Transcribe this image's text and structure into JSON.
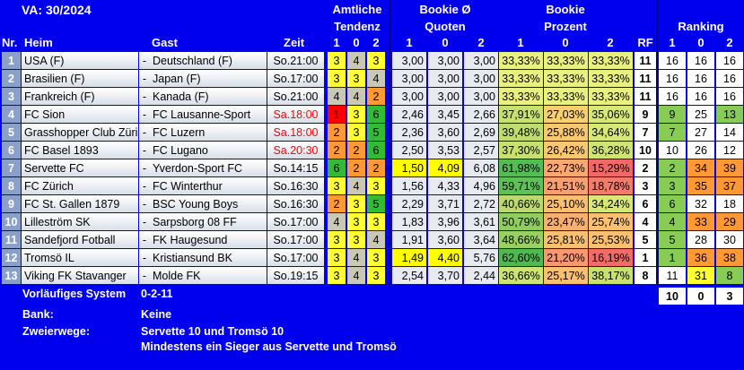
{
  "title": "VA: 30/2024",
  "headers": {
    "amtliche": "Amtliche",
    "tendenz": "Tendenz",
    "bookie_o": "Bookie Ø",
    "quoten": "Quoten",
    "bookie": "Bookie",
    "prozent": "Prozent",
    "ranking": "Ranking",
    "nr": "Nr.",
    "heim": "Heim",
    "gast": "Gast",
    "zeit": "Zeit",
    "one": "1",
    "zero": "0",
    "two": "2",
    "rf": "RF"
  },
  "colors": {
    "background": "#0000ee",
    "yellow": "#ffff00",
    "green": "#33bb33",
    "orange": "#ff9933",
    "red": "#ff0000",
    "gray": "#c8c8b4"
  },
  "rows": [
    {
      "nr": "1",
      "heim": "USA (F)",
      "gast": "Deutschland (F)",
      "zeit": "So.21:00",
      "zeit_red": false,
      "t1": "3",
      "t0": "4",
      "t2": "3",
      "t1c": "#ffff33",
      "t0c": "#c8c8b4",
      "t2c": "#ffff33",
      "q1": "3,00",
      "q0": "3,00",
      "q2": "3,00",
      "qh": [
        false,
        false,
        false
      ],
      "p1": "33,33%",
      "p0": "33,33%",
      "p2": "33,33%",
      "p1c": "#e8f080",
      "p0c": "#e8f080",
      "p2c": "#e8f080",
      "rf": "11",
      "r1": "16",
      "r0": "16",
      "r2": "16",
      "r1c": "#ffffff",
      "r0c": "#ffffff",
      "r2c": "#ffffff"
    },
    {
      "nr": "2",
      "heim": "Brasilien (F)",
      "gast": "Japan (F)",
      "zeit": "So.17:00",
      "zeit_red": false,
      "t1": "3",
      "t0": "3",
      "t2": "4",
      "t1c": "#ffff33",
      "t0c": "#ffff33",
      "t2c": "#c8c8b4",
      "q1": "3,00",
      "q0": "3,00",
      "q2": "3,00",
      "qh": [
        false,
        false,
        false
      ],
      "p1": "33,33%",
      "p0": "33,33%",
      "p2": "33,33%",
      "p1c": "#e8f080",
      "p0c": "#e8f080",
      "p2c": "#e8f080",
      "rf": "11",
      "r1": "16",
      "r0": "16",
      "r2": "16",
      "r1c": "#ffffff",
      "r0c": "#ffffff",
      "r2c": "#ffffff"
    },
    {
      "nr": "3",
      "heim": "Frankreich (F)",
      "gast": "Kanada (F)",
      "zeit": "So.21:00",
      "zeit_red": false,
      "t1": "4",
      "t0": "4",
      "t2": "2",
      "t1c": "#c8c8b4",
      "t0c": "#c8c8b4",
      "t2c": "#ff9933",
      "q1": "3,00",
      "q0": "3,00",
      "q2": "3,00",
      "qh": [
        false,
        false,
        false
      ],
      "p1": "33,33%",
      "p0": "33,33%",
      "p2": "33,33%",
      "p1c": "#e8f080",
      "p0c": "#e8f080",
      "p2c": "#e8f080",
      "rf": "11",
      "r1": "16",
      "r0": "16",
      "r2": "16",
      "r1c": "#ffffff",
      "r0c": "#ffffff",
      "r2c": "#ffffff"
    },
    {
      "nr": "4",
      "heim": "FC Sion",
      "gast": "FC Lausanne-Sport",
      "zeit": "Sa.18:00",
      "zeit_red": true,
      "t1": "1",
      "t0": "3",
      "t2": "6",
      "t1c": "#ff0000",
      "t0c": "#ffff33",
      "t2c": "#33bb33",
      "q1": "2,46",
      "q0": "3,45",
      "q2": "2,66",
      "qh": [
        false,
        false,
        false
      ],
      "p1": "37,91%",
      "p0": "27,03%",
      "p2": "35,06%",
      "p1c": "#c8e070",
      "p0c": "#f8d070",
      "p2c": "#d8e878",
      "rf": "9",
      "r1": "9",
      "r0": "25",
      "r2": "13",
      "r1c": "#88cc55",
      "r0c": "#ffffff",
      "r2c": "#88cc55"
    },
    {
      "nr": "5",
      "heim": "Grasshopper Club Züri",
      "gast": "FC Luzern",
      "zeit": "Sa.18:00",
      "zeit_red": true,
      "t1": "2",
      "t0": "3",
      "t2": "5",
      "t1c": "#ff9933",
      "t0c": "#ffff33",
      "t2c": "#33bb33",
      "q1": "2,36",
      "q0": "3,60",
      "q2": "2,69",
      "qh": [
        false,
        false,
        false
      ],
      "p1": "39,48%",
      "p0": "25,88%",
      "p2": "34,64%",
      "p1c": "#c0dc70",
      "p0c": "#f8c870",
      "p2c": "#d8e878",
      "rf": "7",
      "r1": "7",
      "r0": "27",
      "r2": "14",
      "r1c": "#88cc55",
      "r0c": "#ffffff",
      "r2c": "#ffffff"
    },
    {
      "nr": "6",
      "heim": "FC Basel 1893",
      "gast": "FC Lugano",
      "zeit": "Sa.20:30",
      "zeit_red": true,
      "t1": "2",
      "t0": "2",
      "t2": "6",
      "t1c": "#ff9933",
      "t0c": "#ff9933",
      "t2c": "#33bb33",
      "q1": "2,50",
      "q0": "3,53",
      "q2": "2,57",
      "qh": [
        false,
        false,
        false
      ],
      "p1": "37,30%",
      "p0": "26,42%",
      "p2": "36,28%",
      "p1c": "#c8e070",
      "p0c": "#f8c870",
      "p2c": "#d0e474",
      "rf": "10",
      "r1": "10",
      "r0": "26",
      "r2": "12",
      "r1c": "#ffffff",
      "r0c": "#ffffff",
      "r2c": "#ffffff"
    },
    {
      "nr": "7",
      "heim": "Servette FC",
      "gast": "Yverdon-Sport FC",
      "zeit": "So.14:15",
      "zeit_red": false,
      "t1": "6",
      "t0": "2",
      "t2": "2",
      "t1c": "#33bb33",
      "t0c": "#ff9933",
      "t2c": "#ff9933",
      "q1": "1,50",
      "q0": "4,09",
      "q2": "6,08",
      "qh": [
        true,
        true,
        false
      ],
      "p1": "61,98%",
      "p0": "22,73%",
      "p2": "15,29%",
      "p1c": "#55bb55",
      "p0c": "#f8a870",
      "p2c": "#f06868",
      "rf": "2",
      "r1": "2",
      "r0": "34",
      "r2": "39",
      "r1c": "#88cc55",
      "r0c": "#ff9933",
      "r2c": "#ff9933"
    },
    {
      "nr": "8",
      "heim": "FC Zürich",
      "gast": "FC Winterthur",
      "zeit": "So.16:30",
      "zeit_red": false,
      "t1": "3",
      "t0": "4",
      "t2": "3",
      "t1c": "#ffff33",
      "t0c": "#c8c8b4",
      "t2c": "#ffff33",
      "q1": "1,56",
      "q0": "4,33",
      "q2": "4,96",
      "qh": [
        false,
        false,
        false
      ],
      "p1": "59,71%",
      "p0": "21,51%",
      "p2": "18,78%",
      "p1c": "#60c058",
      "p0c": "#f8a070",
      "p2c": "#f07c6c",
      "rf": "3",
      "r1": "3",
      "r0": "35",
      "r2": "37",
      "r1c": "#88cc55",
      "r0c": "#ff9933",
      "r2c": "#ff9933"
    },
    {
      "nr": "9",
      "heim": "FC St. Gallen 1879",
      "gast": "BSC Young Boys",
      "zeit": "So.16:30",
      "zeit_red": false,
      "t1": "2",
      "t0": "3",
      "t2": "5",
      "t1c": "#ff9933",
      "t0c": "#ffff33",
      "t2c": "#33bb33",
      "q1": "2,29",
      "q0": "3,71",
      "q2": "2,72",
      "qh": [
        false,
        false,
        false
      ],
      "p1": "40,66%",
      "p0": "25,10%",
      "p2": "34,24%",
      "p1c": "#bcd870",
      "p0c": "#f8c070",
      "p2c": "#d8e878",
      "rf": "6",
      "r1": "6",
      "r0": "32",
      "r2": "18",
      "r1c": "#88cc55",
      "r0c": "#ffffff",
      "r2c": "#ffffff"
    },
    {
      "nr": "10",
      "heim": "Lilleström SK",
      "gast": "Sarpsborg 08 FF",
      "zeit": "So.17:00",
      "zeit_red": false,
      "t1": "4",
      "t0": "3",
      "t2": "3",
      "t1c": "#c8c8b4",
      "t0c": "#ffff33",
      "t2c": "#ffff33",
      "q1": "1,83",
      "q0": "3,96",
      "q2": "3,61",
      "qh": [
        false,
        false,
        false
      ],
      "p1": "50,79%",
      "p0": "23,47%",
      "p2": "25,74%",
      "p1c": "#90cc60",
      "p0c": "#f8b070",
      "p2c": "#f8c070",
      "rf": "4",
      "r1": "4",
      "r0": "33",
      "r2": "29",
      "r1c": "#88cc55",
      "r0c": "#ff9933",
      "r2c": "#ff9933"
    },
    {
      "nr": "11",
      "heim": "Sandefjord Fotball",
      "gast": "FK Haugesund",
      "zeit": "So.17:00",
      "zeit_red": false,
      "t1": "3",
      "t0": "3",
      "t2": "4",
      "t1c": "#ffff33",
      "t0c": "#ffff33",
      "t2c": "#c8c8b4",
      "q1": "1,91",
      "q0": "3,60",
      "q2": "3,64",
      "qh": [
        false,
        false,
        false
      ],
      "p1": "48,66%",
      "p0": "25,81%",
      "p2": "25,53%",
      "p1c": "#98d064",
      "p0c": "#f8c070",
      "p2c": "#f8c070",
      "rf": "5",
      "r1": "5",
      "r0": "28",
      "r2": "30",
      "r1c": "#88cc55",
      "r0c": "#ffffff",
      "r2c": "#ffffff"
    },
    {
      "nr": "12",
      "heim": "Tromsö IL",
      "gast": "Kristiansund BK",
      "zeit": "So.17:00",
      "zeit_red": false,
      "t1": "3",
      "t0": "4",
      "t2": "3",
      "t1c": "#ffff33",
      "t0c": "#c8c8b4",
      "t2c": "#ffff33",
      "q1": "1,49",
      "q0": "4,40",
      "q2": "5,76",
      "qh": [
        true,
        true,
        false
      ],
      "p1": "62,60%",
      "p0": "21,20%",
      "p2": "16,19%",
      "p1c": "#50b850",
      "p0c": "#f89870",
      "p2c": "#f06c68",
      "rf": "1",
      "r1": "1",
      "r0": "36",
      "r2": "38",
      "r1c": "#88cc55",
      "r0c": "#ff9933",
      "r2c": "#ff9933"
    },
    {
      "nr": "13",
      "heim": "Viking FK Stavanger",
      "gast": "Molde FK",
      "zeit": "So.19:15",
      "zeit_red": false,
      "t1": "3",
      "t0": "4",
      "t2": "3",
      "t1c": "#ffff33",
      "t0c": "#c8c8b4",
      "t2c": "#ffff33",
      "q1": "2,54",
      "q0": "3,70",
      "q2": "2,44",
      "qh": [
        false,
        false,
        false
      ],
      "p1": "36,66%",
      "p0": "25,17%",
      "p2": "38,17%",
      "p1c": "#cce474",
      "p0c": "#f8c070",
      "p2c": "#c8e070",
      "rf": "8",
      "r1": "11",
      "r0": "31",
      "r2": "8",
      "r1c": "#ffffff",
      "r0c": "#ffff33",
      "r2c": "#88cc55"
    }
  ],
  "footer": {
    "system_label": "Vorläufiges System",
    "system_value": "0-2-11",
    "totals": [
      "10",
      "0",
      "3"
    ],
    "bank_label": "Bank:",
    "bank_value": "Keine",
    "zweierwege_label": "Zweierwege:",
    "zweierwege_line1": "Servette 10 und Tromsö 10",
    "zweierwege_line2": "Mindestens ein Sieger aus Servette und Tromsö"
  }
}
